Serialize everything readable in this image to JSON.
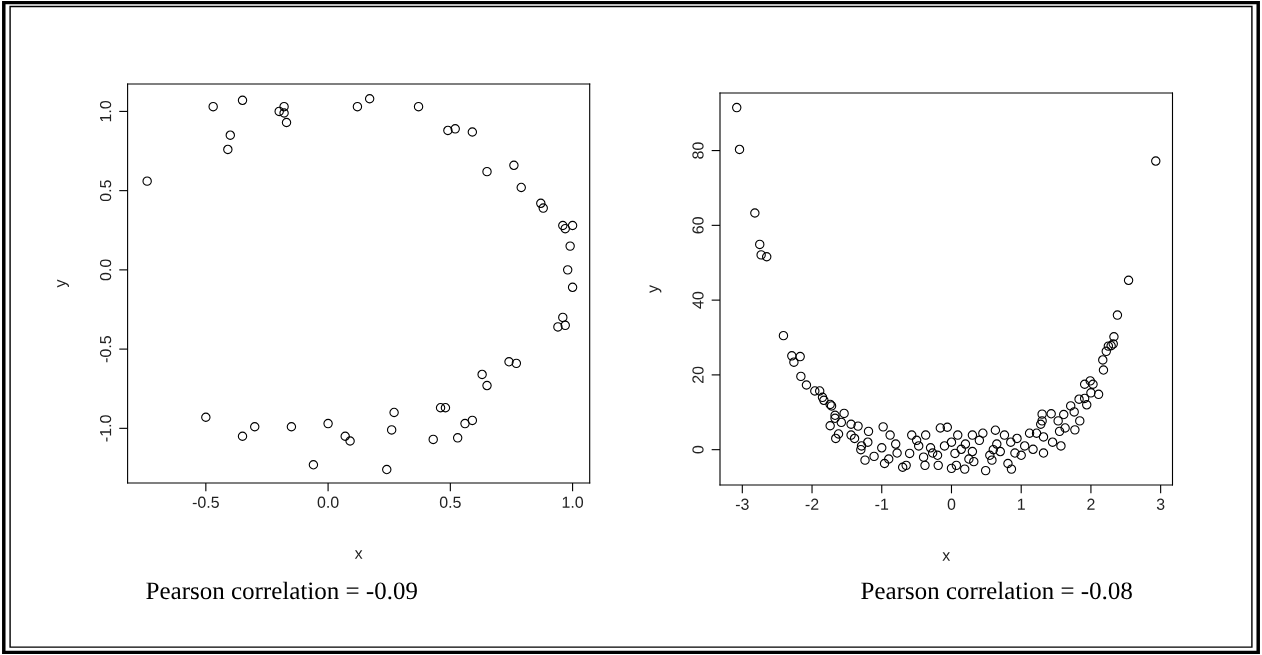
{
  "chart_data": [
    {
      "type": "scatter",
      "xlabel": "x",
      "ylabel": "y",
      "marker": "circle",
      "grid": false,
      "xlim": [
        -0.82,
        1.07
      ],
      "ylim": [
        -1.345,
        1.173
      ],
      "xticks": [
        -0.5,
        {
          "value": 0,
          "label": "0.0"
        },
        0.5,
        {
          "value": 1,
          "label": "1.0"
        }
      ],
      "yticks": [
        {
          "value": -1,
          "label": "-1.0"
        },
        -0.5,
        {
          "value": 0,
          "label": "0.0"
        },
        0.5,
        {
          "value": 1,
          "label": "1.0"
        }
      ],
      "annotations": [
        "Pearson correlation = -0.09"
      ],
      "series": [
        {
          "color": "#000000",
          "x": [
            -0.74,
            -0.47,
            -0.35,
            -0.4,
            -0.41,
            -0.2,
            -0.18,
            -0.18,
            -0.17,
            0.12,
            0.17,
            0.37,
            0.49,
            0.52,
            0.59,
            0.65,
            0.76,
            0.79,
            0.87,
            0.88,
            0.96,
            0.97,
            1.0,
            0.99,
            0.98,
            1.0,
            0.96,
            0.94,
            0.97,
            0.74,
            0.77,
            0.63,
            0.65,
            0.46,
            0.48,
            0.59,
            0.56,
            0.53,
            0.43,
            0.27,
            0.26,
            0.24,
            0.09,
            0.07,
            0.0,
            -0.06,
            -0.15,
            -0.3,
            -0.35,
            -0.5
          ],
          "values": [
            0.56,
            1.03,
            1.07,
            0.85,
            0.76,
            1.0,
            0.99,
            1.03,
            0.93,
            1.03,
            1.08,
            1.03,
            0.88,
            0.89,
            0.87,
            0.62,
            0.66,
            0.52,
            0.42,
            0.39,
            0.28,
            0.26,
            0.28,
            0.15,
            0.0,
            -0.11,
            -0.3,
            -0.36,
            -0.35,
            -0.58,
            -0.59,
            -0.66,
            -0.73,
            -0.87,
            -0.87,
            -0.95,
            -0.97,
            -1.06,
            -1.07,
            -0.9,
            -1.01,
            -1.26,
            -1.08,
            -1.05,
            -0.97,
            -1.23,
            -0.99,
            -0.99,
            -1.05,
            -0.93
          ]
        }
      ]
    },
    {
      "type": "scatter",
      "xlabel": "x",
      "ylabel": "y",
      "marker": "circle",
      "grid": false,
      "xlim": [
        -3.32,
        3.17
      ],
      "ylim": [
        -9.45,
        95.4
      ],
      "xticks": [
        -3,
        -2,
        -1,
        0,
        1,
        2,
        3
      ],
      "yticks": [
        0,
        20,
        40,
        60,
        80
      ],
      "annotations": [
        "Pearson correlation = -0.08"
      ],
      "series": [
        {
          "color": "#000000",
          "x": [
            -3.08,
            -3.04,
            -2.82,
            -2.75,
            -2.73,
            -2.65,
            -2.41,
            -2.29,
            -2.26,
            -2.17,
            -2.16,
            -2.08,
            -1.96,
            -1.89,
            -1.85,
            -1.83,
            -1.74,
            -1.72,
            -1.67,
            -1.67,
            -1.74,
            -1.66,
            -1.62,
            -1.54,
            -1.58,
            -1.44,
            -1.44,
            -1.34,
            -1.24,
            -1.39,
            -1.29,
            -1.19,
            -1.11,
            -0.98,
            -0.96,
            -0.88,
            -0.7,
            -0.65,
            -0.78,
            -0.57,
            -0.47,
            -0.37,
            -0.38,
            -0.27,
            -0.16,
            -0.06,
            -0.19,
            0.0,
            0.07,
            0.09,
            0.19,
            0.14,
            0.3,
            0.32,
            0.49,
            0.45,
            0.63,
            0.58,
            0.81,
            0.86,
            0.76,
            0.91,
            0.94,
            1.12,
            1.17,
            1.22,
            1.3,
            1.3,
            1.28,
            1.32,
            1.32,
            1.43,
            1.45,
            1.53,
            1.57,
            1.55,
            1.63,
            1.61,
            1.71,
            1.76,
            1.77,
            1.84,
            1.83,
            1.91,
            1.94,
            1.91,
            1.99,
            2.03,
            2.0,
            2.11,
            2.18,
            2.17,
            2.22,
            2.25,
            2.29,
            2.32,
            2.33,
            2.38,
            2.54,
            2.93,
            -1.2,
            -1.0,
            -0.8,
            -0.6,
            -0.5,
            -0.4,
            -0.3,
            -0.2,
            -0.1,
            0.0,
            0.05,
            0.2,
            0.25,
            0.3,
            0.4,
            0.55,
            0.6,
            0.65,
            0.7,
            0.85,
            1.0,
            1.05,
            -1.3,
            -0.9
          ],
          "values": [
            91.5,
            80.3,
            63.3,
            54.9,
            52.1,
            51.6,
            30.5,
            25.1,
            23.4,
            24.9,
            19.6,
            17.3,
            15.7,
            15.7,
            14.0,
            13.2,
            12.1,
            11.7,
            9.2,
            8.4,
            6.4,
            3.0,
            4.2,
            9.7,
            7.3,
            6.8,
            3.9,
            6.3,
            -2.8,
            3.0,
            1.0,
            4.9,
            -1.8,
            6.1,
            -3.7,
            3.9,
            -4.7,
            -4.2,
            -0.9,
            3.9,
            1.0,
            3.9,
            -4.2,
            -0.9,
            5.8,
            6.0,
            -4.2,
            -5.0,
            -4.2,
            3.9,
            -5.2,
            0.1,
            3.9,
            -3.2,
            -5.6,
            4.4,
            5.2,
            -2.8,
            -3.7,
            -5.2,
            3.9,
            -0.9,
            3.0,
            4.4,
            0.1,
            4.4,
            9.5,
            7.7,
            6.8,
            -0.9,
            3.4,
            9.6,
            2.0,
            7.7,
            1.0,
            4.9,
            5.8,
            9.4,
            11.7,
            10.1,
            5.3,
            7.7,
            13.5,
            13.7,
            12.0,
            17.5,
            18.4,
            17.5,
            15.2,
            14.8,
            21.3,
            24.0,
            26.3,
            27.7,
            27.8,
            28.3,
            30.2,
            36.0,
            45.3,
            77.2,
            2.0,
            0.5,
            1.5,
            -1.0,
            2.5,
            -2.0,
            0.5,
            -1.5,
            1.0,
            2.0,
            -1.0,
            1.5,
            -2.5,
            -0.5,
            2.5,
            -1.5,
            0.0,
            1.5,
            -0.5,
            2.0,
            -1.5,
            1.0,
            0.0,
            -2.5
          ]
        }
      ]
    }
  ]
}
